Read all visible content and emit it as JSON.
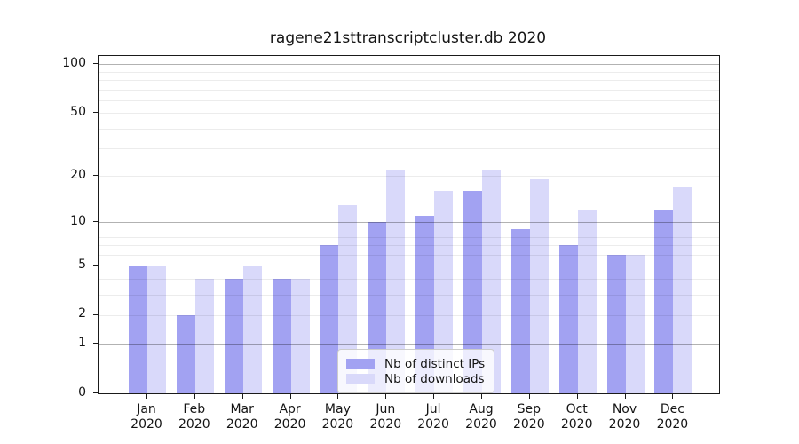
{
  "chart_data": {
    "type": "bar",
    "title": "ragene21sttranscriptcluster.db 2020",
    "x": {
      "months": [
        "Jan",
        "Feb",
        "Mar",
        "Apr",
        "May",
        "Jun",
        "Jul",
        "Aug",
        "Sep",
        "Oct",
        "Nov",
        "Dec"
      ],
      "year": "2020"
    },
    "series": [
      {
        "name": "Nb of distinct IPs",
        "color": "#a2a2f2",
        "values": [
          5,
          2,
          4,
          4,
          7,
          10,
          11,
          16,
          9,
          7,
          6,
          12
        ]
      },
      {
        "name": "Nb of downloads",
        "color": "#d9d9fa",
        "values": [
          5,
          4,
          5,
          4,
          13,
          22,
          16,
          22,
          19,
          12,
          6,
          17
        ]
      }
    ],
    "y_axis": {
      "scale": "log10(value+1)",
      "ticks": [
        0,
        1,
        2,
        5,
        10,
        20,
        50,
        100
      ],
      "ylim": [
        0,
        112
      ],
      "grid": "on",
      "major_gridlines": [
        1,
        10,
        100
      ],
      "minor_gridlines": [
        2,
        3,
        4,
        5,
        6,
        7,
        8,
        20,
        30,
        40,
        50,
        60,
        70,
        80,
        90
      ]
    },
    "legend": {
      "position": "inside-bottom-center",
      "entries": [
        "Nb of distinct IPs",
        "Nb of downloads"
      ]
    }
  }
}
